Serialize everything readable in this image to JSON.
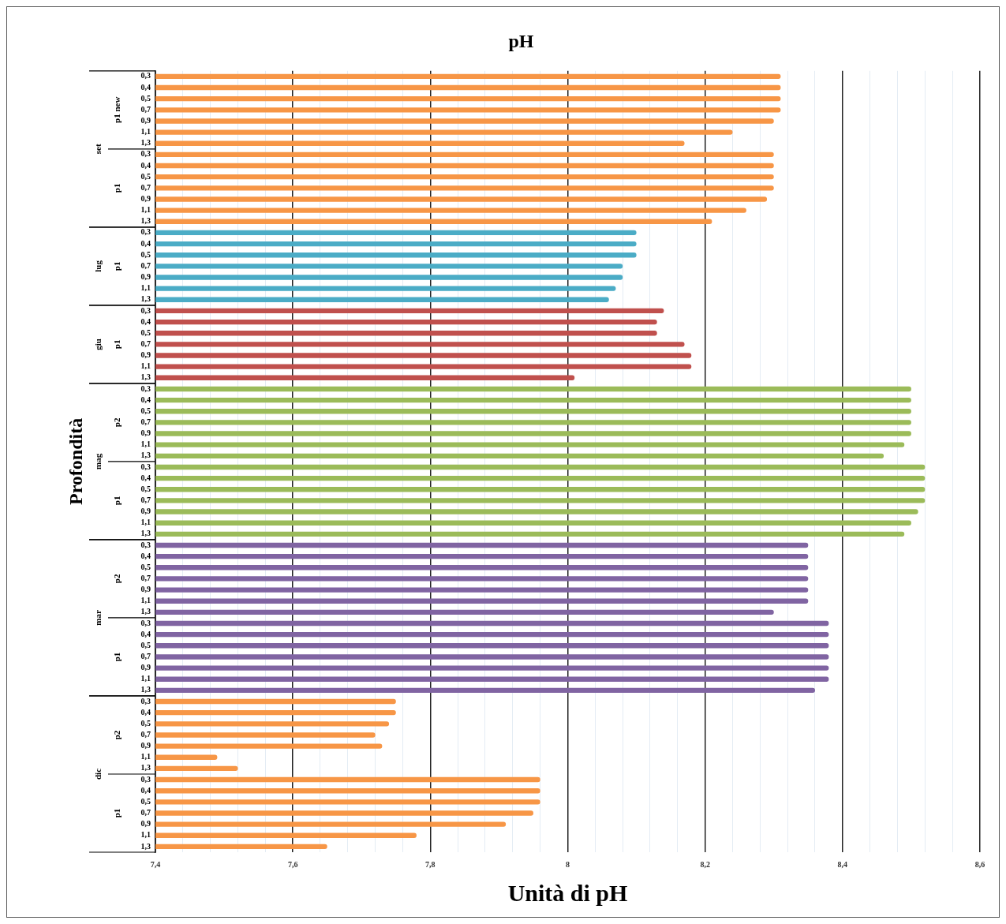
{
  "chart_data": {
    "type": "bar",
    "orientation": "horizontal",
    "title": "pH",
    "xlabel": "Unità di pH",
    "ylabel": "Profondità",
    "categories": [
      "0,3",
      "0,4",
      "0,5",
      "0,7",
      "0,9",
      "1,1",
      "1,3",
      "0,3",
      "0,4",
      "0,5",
      "0,7",
      "0,9",
      "1,1",
      "1,3",
      "0,3",
      "0,4",
      "0,5",
      "0,7",
      "0,9",
      "1,1",
      "1,3",
      "0,3",
      "0,4",
      "0,5",
      "0,7",
      "0,9",
      "1,1",
      "1,3",
      "0,3",
      "0,4",
      "0,5",
      "0,7",
      "0,9",
      "1,1",
      "1,3",
      "0,3",
      "0,4",
      "0,5",
      "0,7",
      "0,9",
      "1,1",
      "1,3",
      "0,3",
      "0,4",
      "0,5",
      "0,7",
      "0,9",
      "1,1",
      "1,3",
      "0,3",
      "0,4",
      "0,5",
      "0,7",
      "0,9",
      "1,1",
      "1,3",
      "0,3",
      "0,4",
      "0,5",
      "0,7",
      "0,9",
      "1,1",
      "1,3",
      "0,3",
      "0,4",
      "0,5",
      "0,7",
      "0,9",
      "1,1",
      "1,3"
    ],
    "values": [
      8.31,
      8.31,
      8.31,
      8.31,
      8.3,
      8.24,
      8.17,
      8.3,
      8.3,
      8.3,
      8.3,
      8.29,
      8.26,
      8.21,
      8.1,
      8.1,
      8.1,
      8.08,
      8.08,
      8.07,
      8.06,
      8.14,
      8.13,
      8.13,
      8.17,
      8.18,
      8.18,
      8.01,
      8.5,
      8.5,
      8.5,
      8.5,
      8.5,
      8.49,
      8.46,
      8.52,
      8.52,
      8.52,
      8.52,
      8.51,
      8.5,
      8.49,
      8.35,
      8.35,
      8.35,
      8.35,
      8.35,
      8.35,
      8.3,
      8.38,
      8.38,
      8.38,
      8.38,
      8.38,
      8.38,
      8.36,
      7.75,
      7.75,
      7.74,
      7.72,
      7.73,
      7.49,
      7.52,
      7.96,
      7.96,
      7.96,
      7.95,
      7.91,
      7.78,
      7.65
    ],
    "colors": [
      "#f79646",
      "#f79646",
      "#f79646",
      "#f79646",
      "#f79646",
      "#f79646",
      "#f79646",
      "#f79646",
      "#f79646",
      "#f79646",
      "#f79646",
      "#f79646",
      "#f79646",
      "#f79646",
      "#4bacc6",
      "#4bacc6",
      "#4bacc6",
      "#4bacc6",
      "#4bacc6",
      "#4bacc6",
      "#4bacc6",
      "#c0504d",
      "#c0504d",
      "#c0504d",
      "#c0504d",
      "#c0504d",
      "#c0504d",
      "#c0504d",
      "#9bbb59",
      "#9bbb59",
      "#9bbb59",
      "#9bbb59",
      "#9bbb59",
      "#9bbb59",
      "#9bbb59",
      "#9bbb59",
      "#9bbb59",
      "#9bbb59",
      "#9bbb59",
      "#9bbb59",
      "#9bbb59",
      "#9bbb59",
      "#8064a2",
      "#8064a2",
      "#8064a2",
      "#8064a2",
      "#8064a2",
      "#8064a2",
      "#8064a2",
      "#8064a2",
      "#8064a2",
      "#8064a2",
      "#8064a2",
      "#8064a2",
      "#8064a2",
      "#8064a2",
      "#f79646",
      "#f79646",
      "#f79646",
      "#f79646",
      "#f79646",
      "#f79646",
      "#f79646",
      "#f79646",
      "#f79646",
      "#f79646",
      "#f79646",
      "#f79646",
      "#f79646",
      "#f79646"
    ],
    "xlim": [
      7.4,
      8.6
    ],
    "xticks": [
      {
        "value": 7.4,
        "label": "7,4"
      },
      {
        "value": 7.44,
        "label": null
      },
      {
        "value": 7.48,
        "label": null
      },
      {
        "value": 7.52,
        "label": null
      },
      {
        "value": 7.56,
        "label": null
      },
      {
        "value": 7.6,
        "label": "7,6"
      },
      {
        "value": 7.64,
        "label": null
      },
      {
        "value": 7.68,
        "label": null
      },
      {
        "value": 7.72,
        "label": null
      },
      {
        "value": 7.76,
        "label": null
      },
      {
        "value": 7.8,
        "label": "7,8"
      },
      {
        "value": 7.84,
        "label": null
      },
      {
        "value": 7.88,
        "label": null
      },
      {
        "value": 7.92,
        "label": null
      },
      {
        "value": 7.96,
        "label": null
      },
      8,
      {
        "value": 8.04,
        "label": null
      },
      {
        "value": 8.08,
        "label": null
      },
      {
        "value": 8.12,
        "label": null
      },
      {
        "value": 8.16,
        "label": null
      },
      {
        "value": 8.2,
        "label": "8,2"
      },
      {
        "value": 8.24,
        "label": null
      },
      {
        "value": 8.28,
        "label": null
      },
      {
        "value": 8.32,
        "label": null
      },
      {
        "value": 8.36,
        "label": null
      },
      {
        "value": 8.4,
        "label": "8,4"
      },
      {
        "value": 8.44,
        "label": null
      },
      {
        "value": 8.48,
        "label": null
      },
      {
        "value": 8.52,
        "label": null
      },
      {
        "value": 8.56,
        "label": null
      },
      {
        "value": 8.6,
        "label": "8,6"
      }
    ],
    "grid": "x",
    "annotations": [
      "set",
      "p1 new",
      "p1",
      "lug",
      "p1",
      "giu",
      "p1",
      "mag",
      "p2",
      "p1",
      "mar",
      "p2",
      "p1",
      "dic",
      "p2",
      "p1"
    ]
  }
}
